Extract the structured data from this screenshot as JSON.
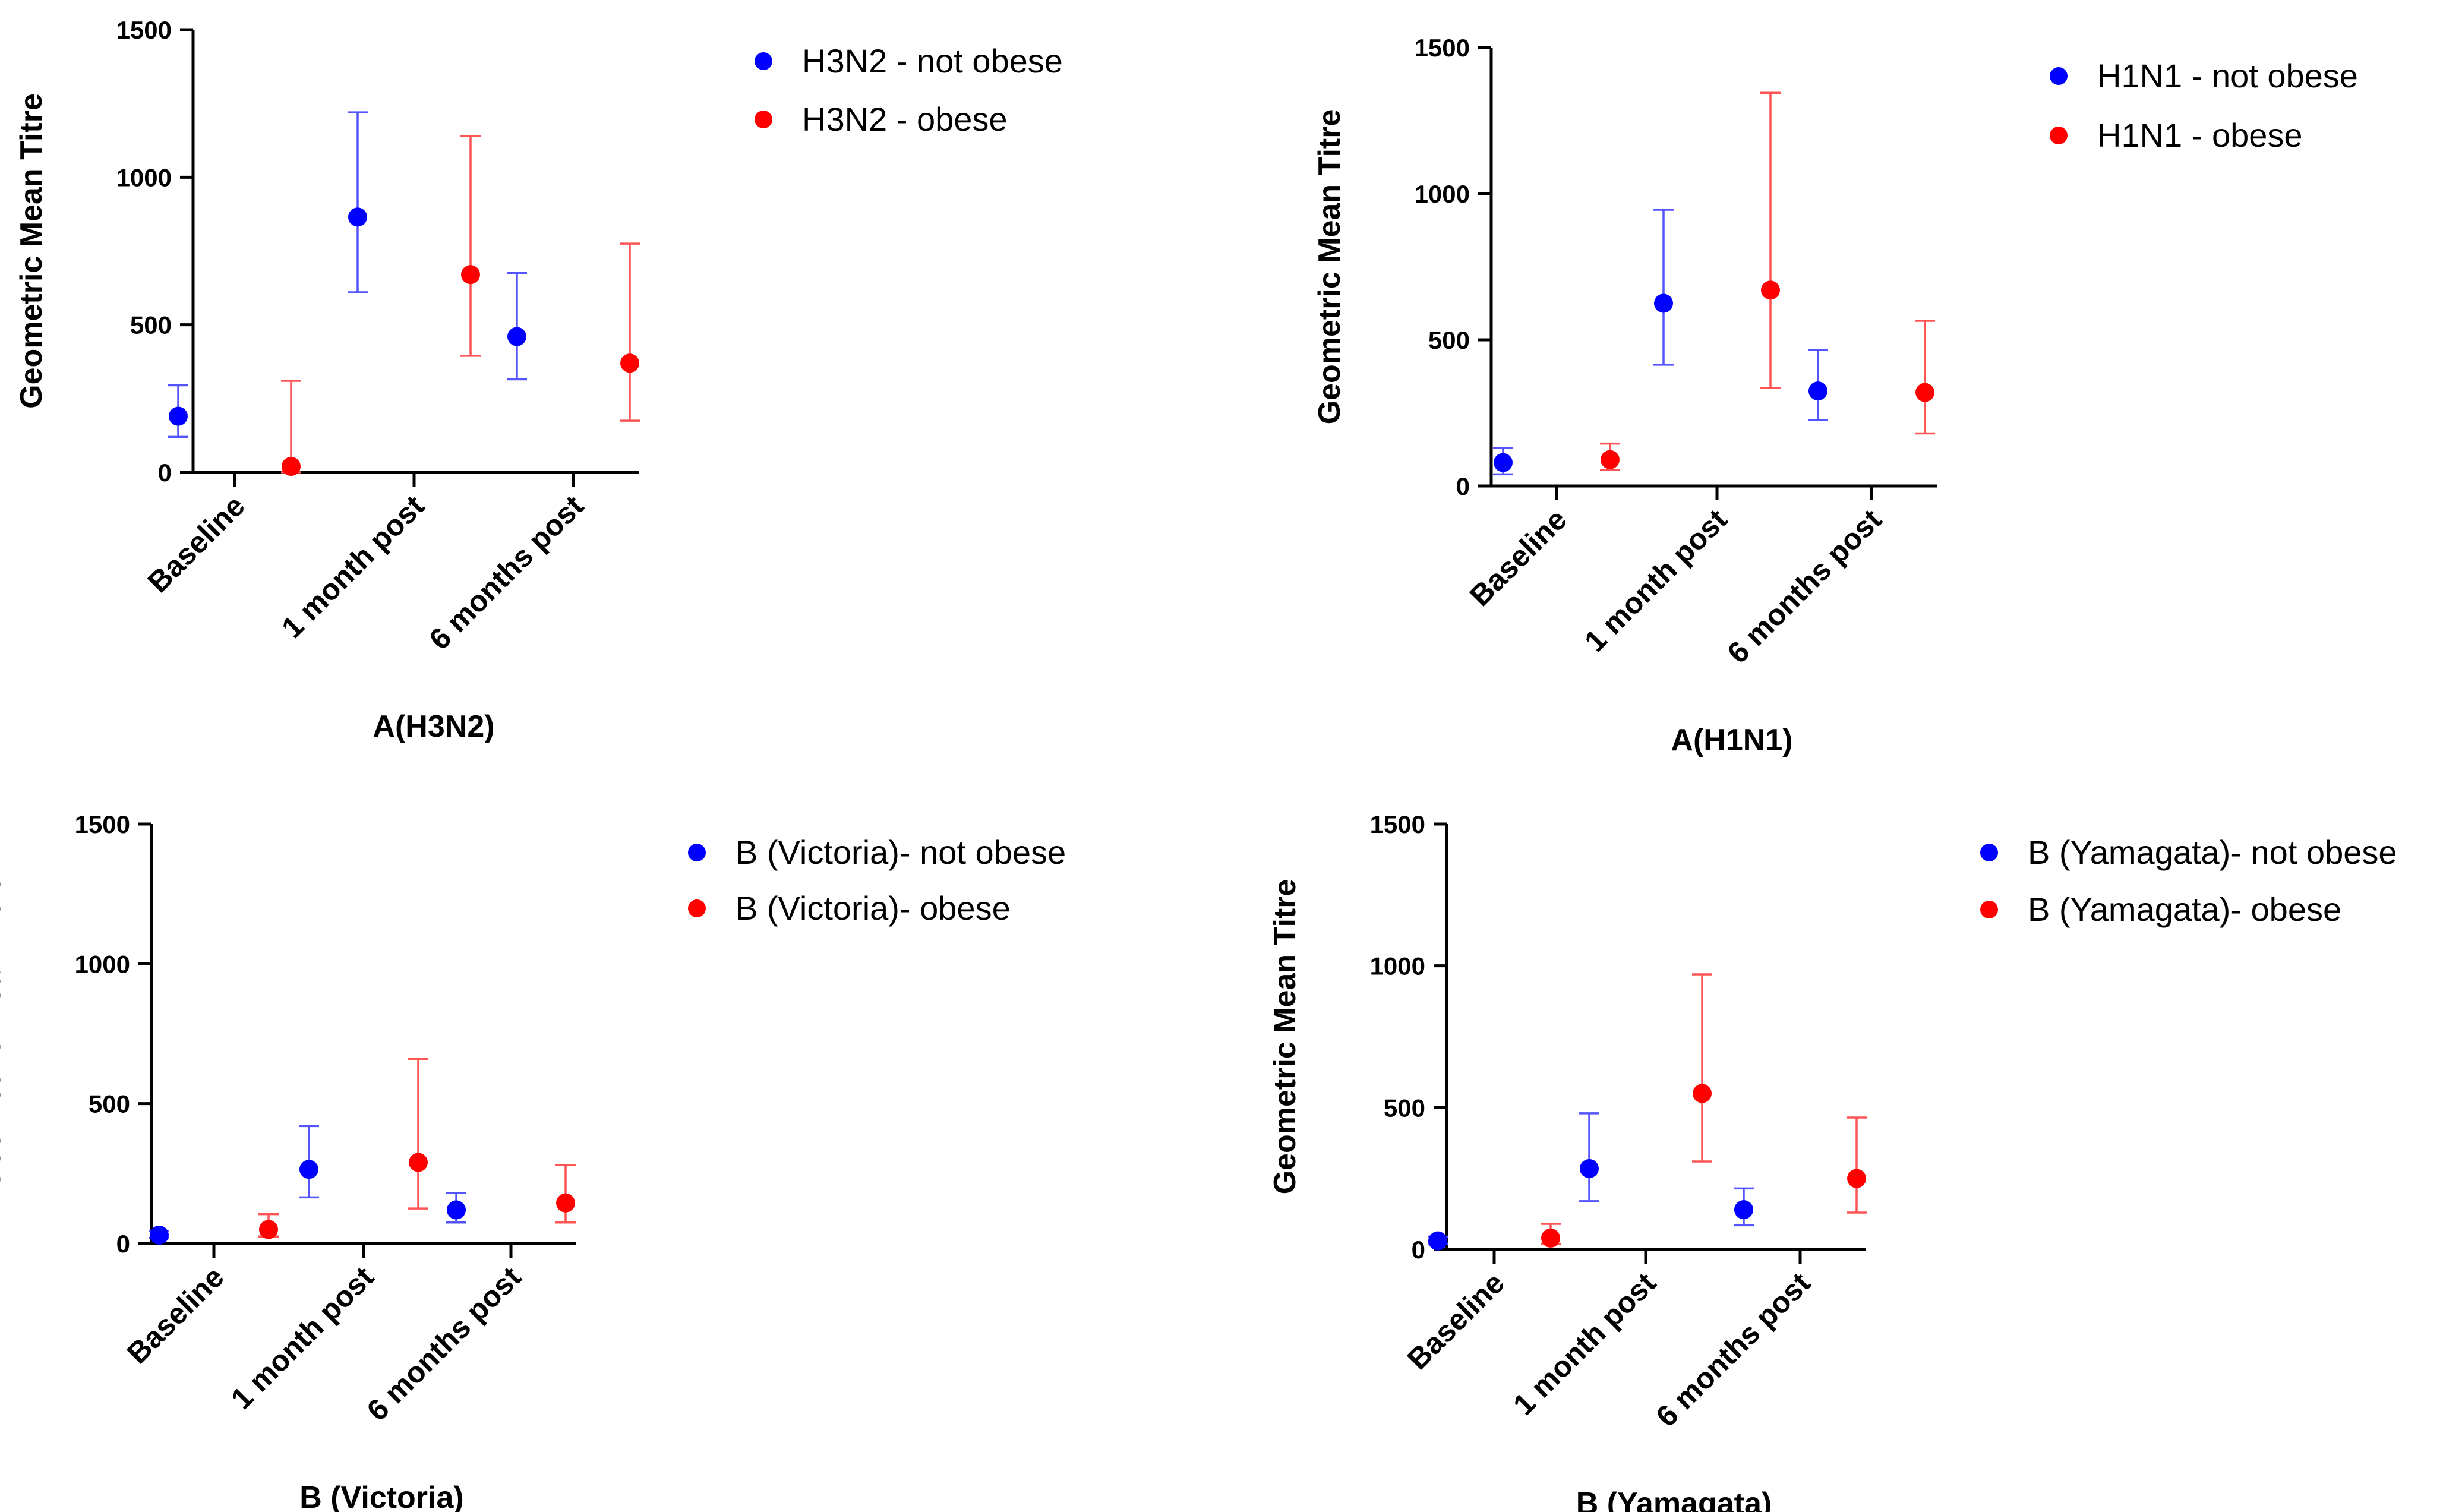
{
  "chart_data": [
    {
      "type": "scatter",
      "title": "",
      "xlabel": "A(H3N2)",
      "ylabel": "Geometric Mean Titre",
      "ylim": [
        0,
        1500
      ],
      "yticks": [
        0,
        500,
        1000,
        1500
      ],
      "categories": [
        "Baseline",
        "1 month post",
        "6 months post"
      ],
      "legend_position": "right",
      "series": [
        {
          "name": "H3N2 - not obese",
          "color": "#0000FF",
          "values": [
            190,
            865,
            460
          ],
          "lower": [
            120,
            610,
            315
          ],
          "upper": [
            295,
            1220,
            675
          ]
        },
        {
          "name": "H3N2 - obese",
          "color": "#FF0000",
          "values": [
            20,
            670,
            370
          ],
          "lower": [
            0,
            395,
            175
          ],
          "upper": [
            310,
            1140,
            775
          ]
        }
      ]
    },
    {
      "type": "scatter",
      "title": "",
      "xlabel": "A(H1N1)",
      "ylabel": "Geometric Mean Titre",
      "ylim": [
        0,
        1500
      ],
      "yticks": [
        0,
        500,
        1000,
        1500
      ],
      "categories": [
        "Baseline",
        "1 month post",
        "6 months post"
      ],
      "legend_position": "right",
      "series": [
        {
          "name": "H1N1 - not obese",
          "color": "#0000FF",
          "values": [
            80,
            625,
            325
          ],
          "lower": [
            40,
            415,
            225
          ],
          "upper": [
            130,
            945,
            465
          ]
        },
        {
          "name": "H1N1 - obese",
          "color": "#FF0000",
          "values": [
            90,
            670,
            320
          ],
          "lower": [
            55,
            335,
            180
          ],
          "upper": [
            145,
            1345,
            565
          ]
        }
      ]
    },
    {
      "type": "scatter",
      "title": "",
      "xlabel": "B (Victoria)",
      "ylabel": "Geometric Mean Titre",
      "ylim": [
        0,
        1500
      ],
      "yticks": [
        0,
        500,
        1000,
        1500
      ],
      "categories": [
        "Baseline",
        "1 month post",
        "6 months post"
      ],
      "legend_position": "right",
      "series": [
        {
          "name": "B (Victoria)- not obese",
          "color": "#0000FF",
          "values": [
            30,
            265,
            120
          ],
          "lower": [
            20,
            165,
            75
          ],
          "upper": [
            45,
            420,
            180
          ]
        },
        {
          "name": "B (Victoria)- obese",
          "color": "#FF0000",
          "values": [
            50,
            290,
            145
          ],
          "lower": [
            25,
            125,
            75
          ],
          "upper": [
            105,
            660,
            280
          ]
        }
      ]
    },
    {
      "type": "scatter",
      "title": "",
      "xlabel": "B (Yamagata)",
      "ylabel": "Geometric Mean Titre",
      "ylim": [
        0,
        1500
      ],
      "yticks": [
        0,
        500,
        1000,
        1500
      ],
      "categories": [
        "Baseline",
        "1 month post",
        "6 months post"
      ],
      "legend_position": "right",
      "series": [
        {
          "name": "B (Yamagata)- not obese",
          "color": "#0000FF",
          "values": [
            30,
            285,
            140
          ],
          "lower": [
            20,
            170,
            85
          ],
          "upper": [
            45,
            480,
            215
          ]
        },
        {
          "name": "B (Yamagata)- obese",
          "color": "#FF0000",
          "values": [
            40,
            550,
            250
          ],
          "lower": [
            20,
            310,
            130
          ],
          "upper": [
            90,
            970,
            465
          ]
        }
      ]
    }
  ]
}
